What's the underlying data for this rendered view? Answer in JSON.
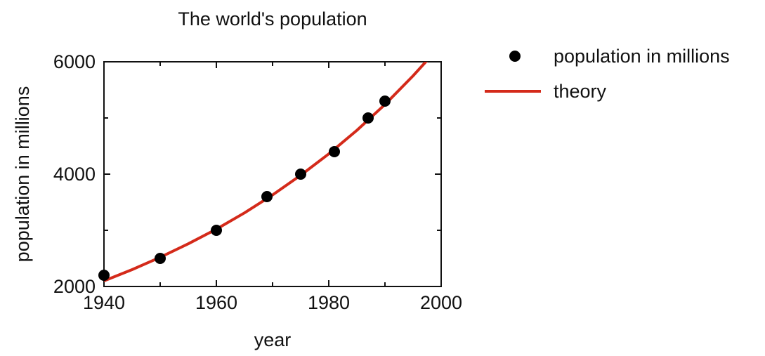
{
  "chart_data": {
    "type": "scatter",
    "title": "The world's population",
    "xlabel": "year",
    "ylabel": "population in millions",
    "xlim": [
      1940,
      2000
    ],
    "ylim": [
      2000,
      6000
    ],
    "xticks": [
      1940,
      1960,
      1980,
      2000
    ],
    "yticks": [
      2000,
      4000,
      6000
    ],
    "grid": false,
    "legend_position": "right-outside-top",
    "series": [
      {
        "name": "population in millions",
        "kind": "scatter",
        "color": "#000000",
        "x": [
          1940,
          1950,
          1960,
          1969,
          1975,
          1981,
          1987,
          1990
        ],
        "y": [
          2200,
          2500,
          3000,
          3600,
          4000,
          4400,
          5000,
          5300
        ]
      },
      {
        "name": "theory",
        "kind": "line",
        "color": "#d42a1a",
        "x": [
          1940,
          1945,
          1950,
          1955,
          1960,
          1965,
          1970,
          1975,
          1980,
          1985,
          1990,
          1995,
          1998
        ],
        "y": [
          2100,
          2300,
          2520,
          2760,
          3020,
          3310,
          3630,
          3980,
          4360,
          4780,
          5240,
          5750,
          6080
        ]
      }
    ]
  }
}
